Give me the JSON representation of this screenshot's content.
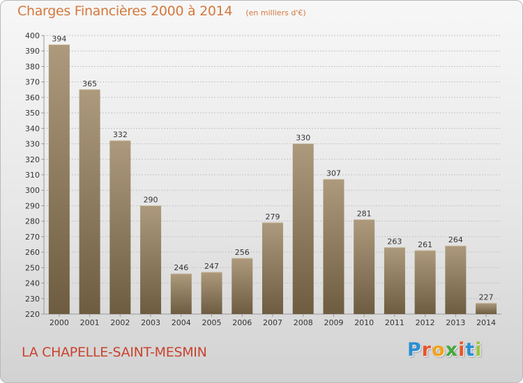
{
  "title": "Charges Financières 2000 à 2014",
  "subtitle": "(en milliers d'€)",
  "commune": "LA CHAPELLE-SAINT-MESMIN",
  "logo": {
    "letters": [
      "P",
      "r",
      "o",
      "x",
      "i",
      "t",
      "i"
    ],
    "colors": [
      "#2a8fd1",
      "#e8552a",
      "#f2a31b",
      "#45a83f",
      "#e8552a",
      "#2a8fd1",
      "#9ac43d"
    ]
  },
  "colors": {
    "bar_top": "#ad9a7d",
    "bar_bottom": "#6e5c41",
    "grid": "#c4c4c4",
    "axis_text": "#333333",
    "title": "#d4783c",
    "commune": "#c8432e"
  },
  "chart_data": {
    "type": "bar",
    "categories": [
      "2000",
      "2001",
      "2002",
      "2003",
      "2004",
      "2005",
      "2006",
      "2007",
      "2008",
      "2009",
      "2010",
      "2011",
      "2012",
      "2013",
      "2014"
    ],
    "values": [
      394,
      365,
      332,
      290,
      246,
      247,
      256,
      279,
      330,
      307,
      281,
      263,
      261,
      264,
      227
    ],
    "ylim": [
      220,
      400
    ],
    "ytick_step": 10,
    "grid": true,
    "data_labels": true
  }
}
